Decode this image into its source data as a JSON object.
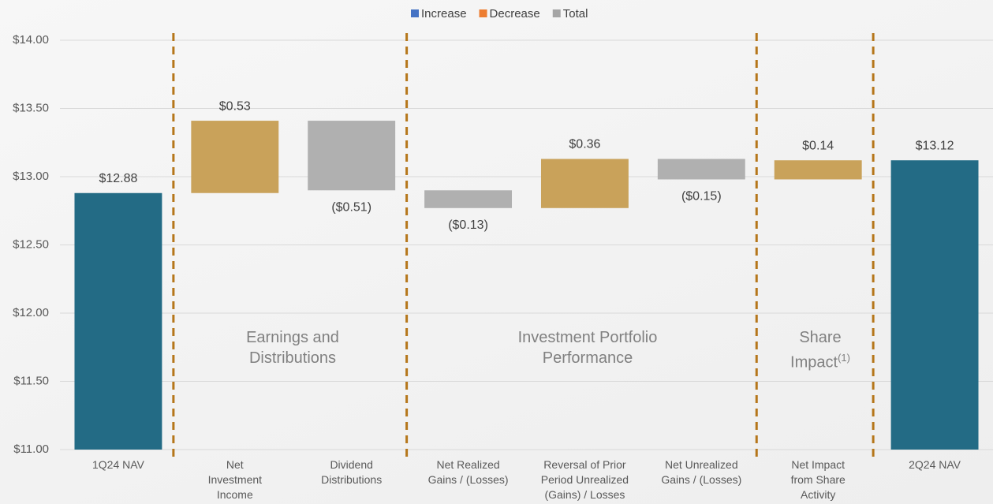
{
  "chart_data": {
    "type": "waterfall",
    "legend": [
      {
        "name": "Increase",
        "color": "#4472c4"
      },
      {
        "name": "Decrease",
        "color": "#ed7d31"
      },
      {
        "name": "Total",
        "color": "#a5a5a5"
      }
    ],
    "categories": [
      "1Q24 NAV",
      "Net\nInvestment\nIncome",
      "Dividend\nDistributions",
      "Net Realized\nGains / (Losses)",
      "Reversal of Prior\nPeriod Unrealized\n(Gains) / Losses",
      "Net Unrealized\nGains / (Losses)",
      "Net Impact\nfrom Share\nActivity",
      "2Q24 NAV"
    ],
    "values": [
      12.88,
      0.53,
      -0.51,
      -0.13,
      0.36,
      -0.15,
      0.14,
      13.12
    ],
    "value_labels": [
      "$12.88",
      "$0.53",
      "($0.51)",
      "($0.13)",
      "$0.36",
      "($0.15)",
      "$0.14",
      "$13.12"
    ],
    "is_total": [
      true,
      false,
      false,
      false,
      false,
      false,
      false,
      true
    ],
    "total_color": "#236b85",
    "increase_color": "#c9a25a",
    "decrease_color": "#b0b0b0",
    "ylim": [
      11,
      14
    ],
    "yticks": [
      {
        "value": 11,
        "label": "$11.00"
      },
      {
        "value": 11.5,
        "label": "$11.50"
      },
      {
        "value": 12,
        "label": "$12.00"
      },
      {
        "value": 12.5,
        "label": "$12.50"
      },
      {
        "value": 13,
        "label": "$13.00"
      },
      {
        "value": 13.5,
        "label": "$13.50"
      },
      {
        "value": 14,
        "label": "$14.00"
      }
    ],
    "grid": true,
    "annotations": [
      {
        "text": "Earnings and\nDistributions"
      },
      {
        "text": "Investment Portfolio\nPerformance"
      },
      {
        "text": "Share\nImpact",
        "note": "(1)"
      }
    ]
  }
}
